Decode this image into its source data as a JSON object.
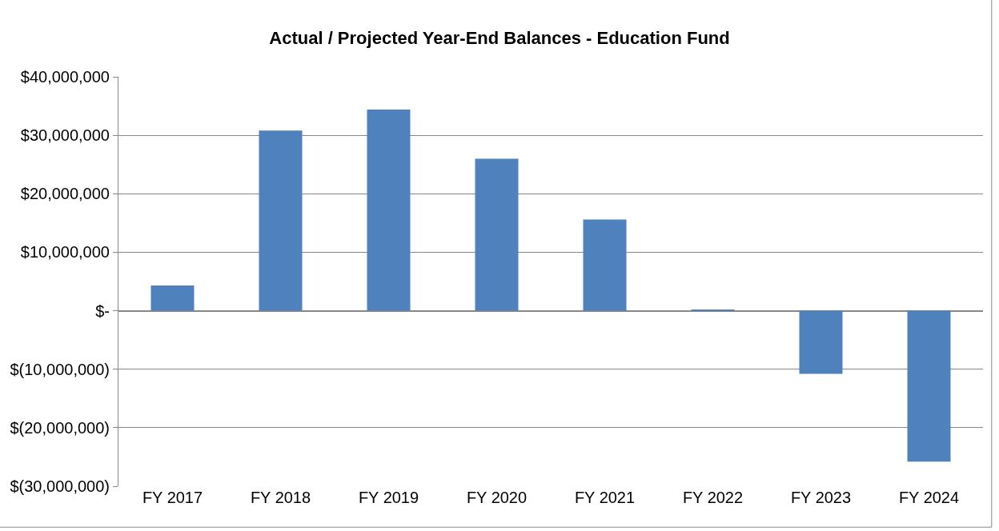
{
  "chart_data": {
    "type": "bar",
    "title": "Actual / Projected Year-End Balances - Education Fund",
    "categories": [
      "FY 2017",
      "FY 2018",
      "FY 2019",
      "FY 2020",
      "FY 2021",
      "FY 2022",
      "FY 2023",
      "FY 2024"
    ],
    "values": [
      4300000,
      30800000,
      34400000,
      26000000,
      15600000,
      150000,
      -10800000,
      -25800000
    ],
    "color": "#4f81bd",
    "ylim": [
      -30000000,
      40000000
    ],
    "yticks": [
      {
        "value": -30000000,
        "label": "$(30,000,000)"
      },
      {
        "value": -20000000,
        "label": "$(20,000,000)"
      },
      {
        "value": -10000000,
        "label": "$(10,000,000)"
      },
      {
        "value": 0,
        "label": "$-"
      },
      {
        "value": 10000000,
        "label": "$10,000,000"
      },
      {
        "value": 20000000,
        "label": "$20,000,000"
      },
      {
        "value": 30000000,
        "label": "$30,000,000"
      },
      {
        "value": 40000000,
        "label": "$40,000,000"
      }
    ],
    "grid": "y",
    "legend": false
  }
}
